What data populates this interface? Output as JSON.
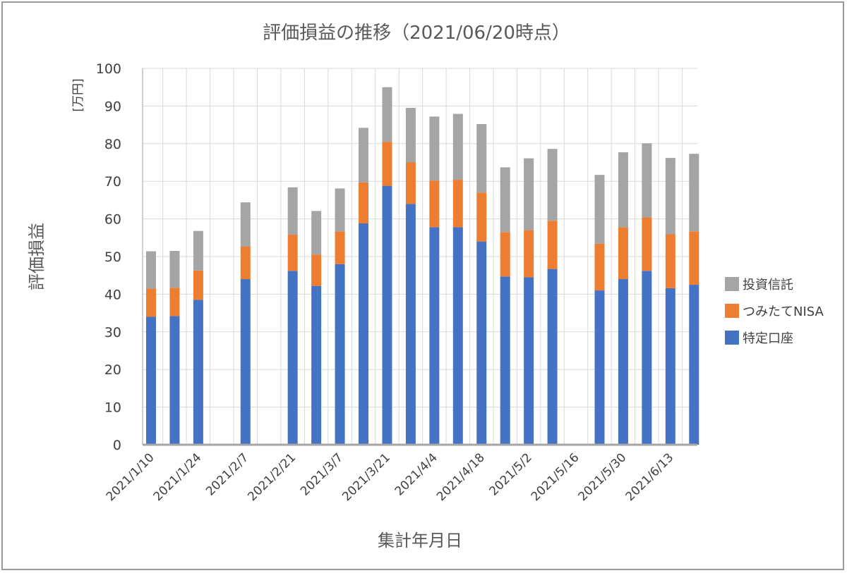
{
  "chart_data": {
    "type": "bar",
    "stacked": true,
    "title": "評価損益の推移（2021/06/20時点）",
    "xlabel": "集計年月日",
    "ylabel": "評価損益",
    "yunit": "[万円]",
    "ylim": [
      0,
      100
    ],
    "yticks": [
      0,
      10,
      20,
      30,
      40,
      50,
      60,
      70,
      80,
      90,
      100
    ],
    "grid": true,
    "legend_position": "right",
    "x_tick_labels": [
      "2021/1/10",
      "2021/1/24",
      "2021/2/7",
      "2021/2/21",
      "2021/3/7",
      "2021/3/21",
      "2021/4/4",
      "2021/4/18",
      "2021/5/2",
      "2021/5/16",
      "2021/5/30",
      "2021/6/13"
    ],
    "categories": [
      "2021/1/10",
      "2021/1/17",
      "2021/1/24",
      "2021/1/31",
      "2021/2/7",
      "2021/2/14",
      "2021/2/21",
      "2021/2/28",
      "2021/3/7",
      "2021/3/14",
      "2021/3/21",
      "2021/3/28",
      "2021/4/4",
      "2021/4/11",
      "2021/4/18",
      "2021/4/25",
      "2021/5/2",
      "2021/5/9",
      "2021/5/16",
      "2021/5/23",
      "2021/5/30",
      "2021/6/6",
      "2021/6/13",
      "2021/6/20"
    ],
    "series": [
      {
        "name": "特定口座",
        "color": "#4472c4",
        "values": [
          34,
          34.2,
          38.5,
          null,
          44,
          null,
          46.2,
          42.2,
          48,
          58.8,
          68.8,
          64,
          57.8,
          57.8,
          54,
          44.7,
          44.5,
          46.7,
          null,
          41,
          44,
          46.2,
          41.6,
          42.5
        ]
      },
      {
        "name": "つみたてNISA",
        "color": "#ed7d31",
        "values": [
          7.5,
          7.5,
          7.8,
          null,
          8.7,
          null,
          9.6,
          8.3,
          8.7,
          10.9,
          11.7,
          11,
          12.4,
          12.6,
          13,
          11.8,
          12.5,
          12.8,
          null,
          12.4,
          13.8,
          14.2,
          14.3,
          14.2
        ]
      },
      {
        "name": "投資信託",
        "color": "#a5a5a5",
        "values": [
          9.9,
          9.8,
          10.5,
          null,
          11.7,
          null,
          12.6,
          11.6,
          11.4,
          14.5,
          14.5,
          14.5,
          17,
          17.5,
          18.2,
          17.2,
          19.1,
          19.1,
          null,
          18.3,
          19.9,
          19.7,
          20.3,
          20.6
        ]
      }
    ]
  }
}
